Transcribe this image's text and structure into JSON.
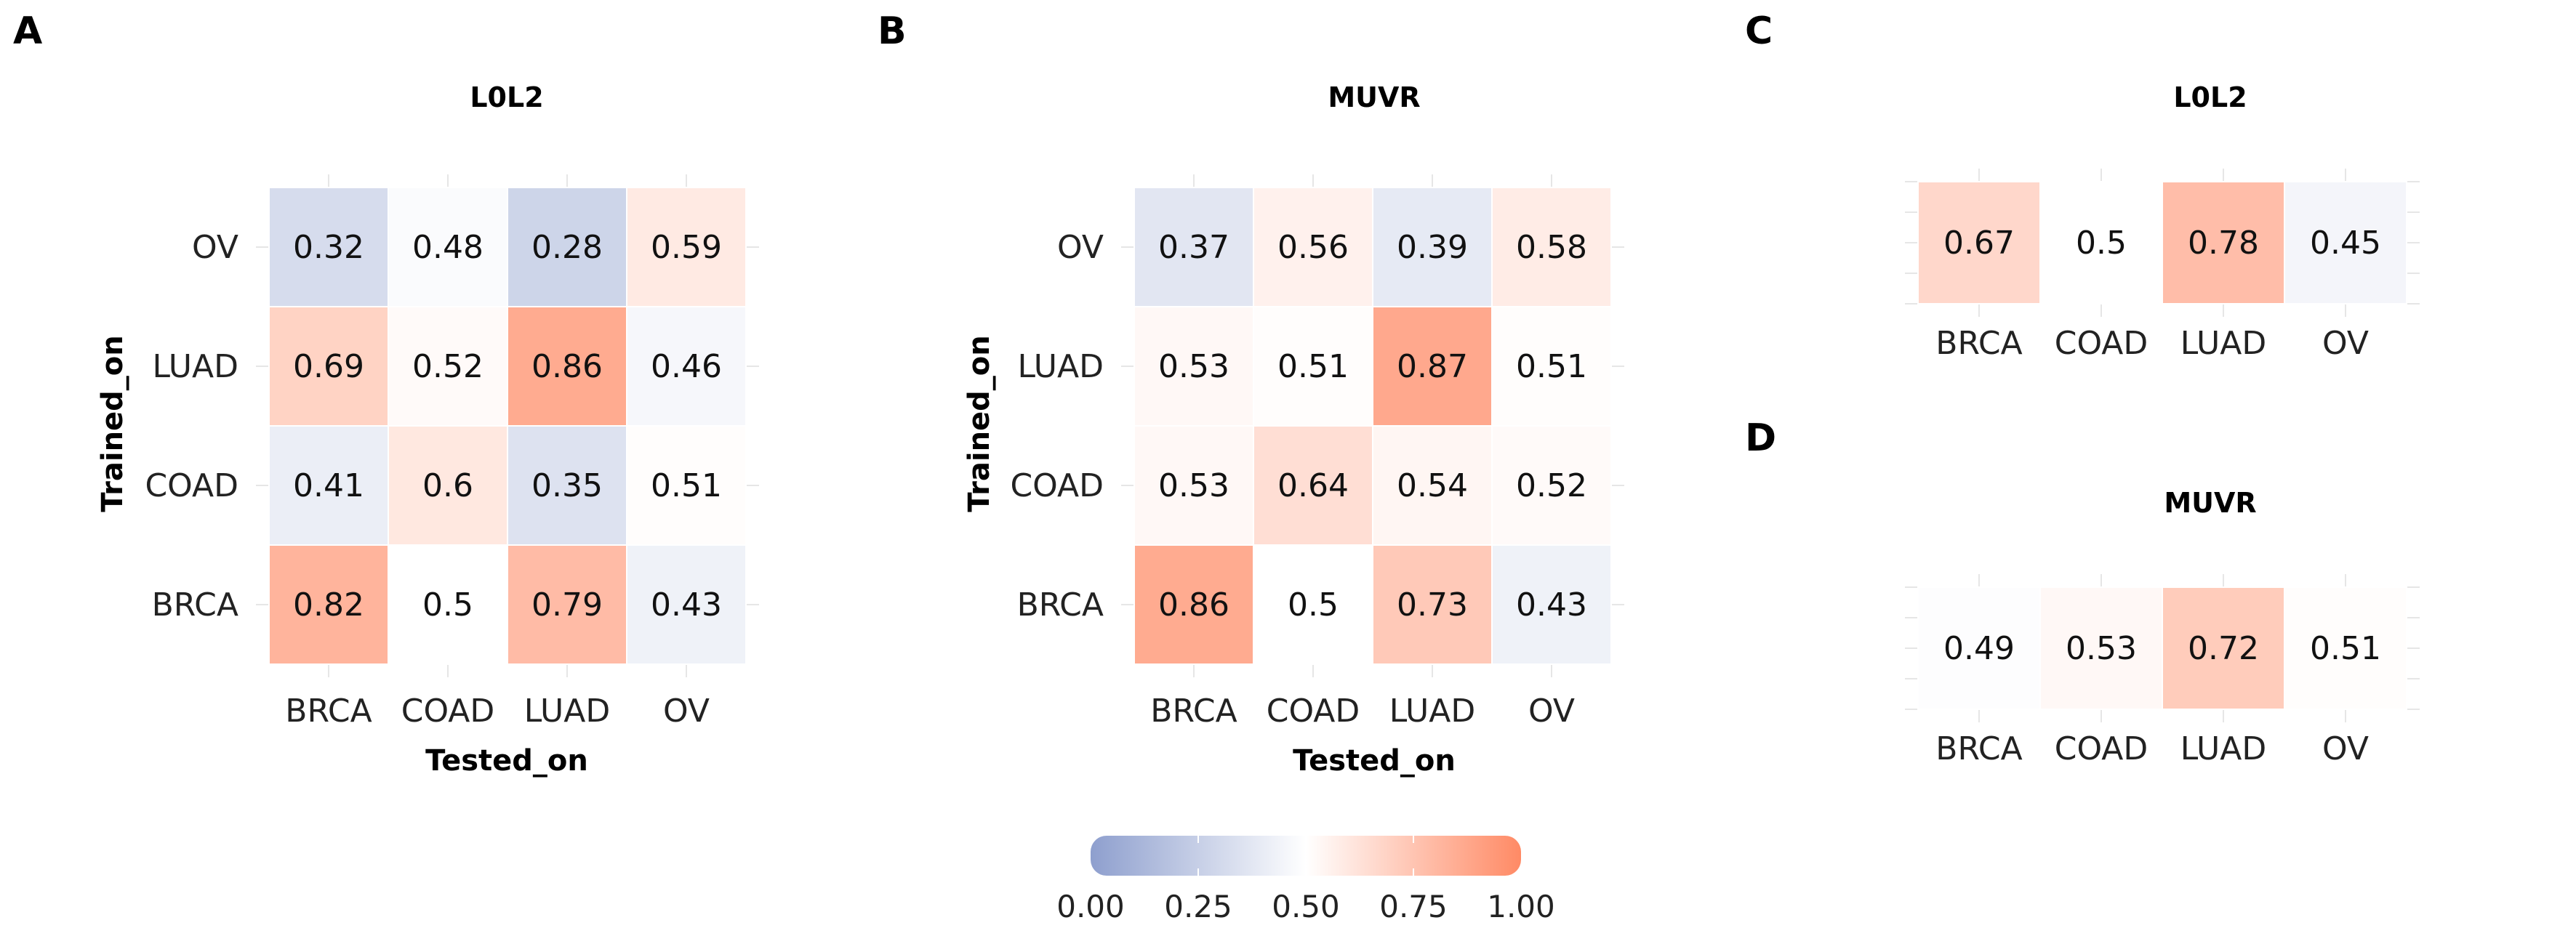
{
  "colors": {
    "low": "#8e9fce",
    "mid": "#ffffff",
    "high": "#ff8a65"
  },
  "legend": {
    "ticks": [
      0,
      0.25,
      0.5,
      0.75,
      1.0
    ],
    "tick_labels": [
      "0.00",
      "0.25",
      "0.50",
      "0.75",
      "1.00"
    ]
  },
  "chart_data": [
    {
      "panel": "A",
      "type": "heatmap",
      "title": "L0L2",
      "xlabel": "Tested_on",
      "ylabel": "Trained_on",
      "x_categories": [
        "BRCA",
        "COAD",
        "LUAD",
        "OV"
      ],
      "y_categories": [
        "OV",
        "LUAD",
        "COAD",
        "BRCA"
      ],
      "values": [
        [
          0.32,
          0.48,
          0.28,
          0.59
        ],
        [
          0.69,
          0.52,
          0.86,
          0.46
        ],
        [
          0.41,
          0.6,
          0.35,
          0.51
        ],
        [
          0.82,
          0.5,
          0.79,
          0.43
        ]
      ],
      "value_labels": [
        [
          "0.32",
          "0.48",
          "0.28",
          "0.59"
        ],
        [
          "0.69",
          "0.52",
          "0.86",
          "0.46"
        ],
        [
          "0.41",
          "0.6",
          "0.35",
          "0.51"
        ],
        [
          "0.82",
          "0.5",
          "0.79",
          "0.43"
        ]
      ]
    },
    {
      "panel": "B",
      "type": "heatmap",
      "title": "MUVR",
      "xlabel": "Tested_on",
      "ylabel": "Trained_on",
      "x_categories": [
        "BRCA",
        "COAD",
        "LUAD",
        "OV"
      ],
      "y_categories": [
        "OV",
        "LUAD",
        "COAD",
        "BRCA"
      ],
      "values": [
        [
          0.37,
          0.56,
          0.39,
          0.58
        ],
        [
          0.53,
          0.51,
          0.87,
          0.51
        ],
        [
          0.53,
          0.64,
          0.54,
          0.52
        ],
        [
          0.86,
          0.5,
          0.73,
          0.43
        ]
      ],
      "value_labels": [
        [
          "0.37",
          "0.56",
          "0.39",
          "0.58"
        ],
        [
          "0.53",
          "0.51",
          "0.87",
          "0.51"
        ],
        [
          "0.53",
          "0.64",
          "0.54",
          "0.52"
        ],
        [
          "0.86",
          "0.5",
          "0.73",
          "0.43"
        ]
      ]
    },
    {
      "panel": "C",
      "type": "heatmap",
      "title": "L0L2",
      "xlabel": "",
      "ylabel": "",
      "x_categories": [
        "BRCA",
        "COAD",
        "LUAD",
        "OV"
      ],
      "y_categories": [],
      "values": [
        [
          0.67,
          0.5,
          0.78,
          0.45
        ]
      ],
      "value_labels": [
        [
          "0.67",
          "0.5",
          "0.78",
          "0.45"
        ]
      ]
    },
    {
      "panel": "D",
      "type": "heatmap",
      "title": "MUVR",
      "xlabel": "",
      "ylabel": "",
      "x_categories": [
        "BRCA",
        "COAD",
        "LUAD",
        "OV"
      ],
      "y_categories": [],
      "values": [
        [
          0.49,
          0.53,
          0.72,
          0.51
        ]
      ],
      "value_labels": [
        [
          "0.49",
          "0.53",
          "0.72",
          "0.51"
        ]
      ]
    }
  ]
}
